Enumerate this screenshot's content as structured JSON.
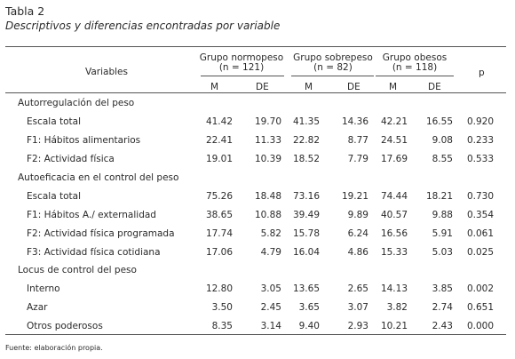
{
  "title": "Tabla 2",
  "subtitle": "Descriptivos y diferencias encontradas por variable",
  "header": {
    "variables": "Variables",
    "groups": [
      {
        "name": "Grupo normopeso",
        "n": "(n = 121)"
      },
      {
        "name": "Grupo sobrepeso",
        "n": "(n = 82)"
      },
      {
        "name": "Grupo obesos",
        "n": "(n = 118)"
      }
    ],
    "m": "M",
    "de": "DE",
    "p": "p"
  },
  "sections": [
    {
      "label": "Autorregulación del peso",
      "rows": [
        {
          "label": "Escala total",
          "v": [
            "41.42",
            "19.70",
            "41.35",
            "14.36",
            "42.21",
            "16.55"
          ],
          "p": "0.920"
        },
        {
          "label": "F1: Hábitos alimentarios",
          "v": [
            "22.41",
            "11.33",
            "22.82",
            "8.77",
            "24.51",
            "9.08"
          ],
          "p": "0.233"
        },
        {
          "label": "F2: Actividad física",
          "v": [
            "19.01",
            "10.39",
            "18.52",
            "7.79",
            "17.69",
            "8.55"
          ],
          "p": "0.533"
        }
      ]
    },
    {
      "label": "Autoeficacia en el control del peso",
      "rows": [
        {
          "label": "Escala total",
          "v": [
            "75.26",
            "18.48",
            "73.16",
            "19.21",
            "74.44",
            "18.21"
          ],
          "p": "0.730"
        },
        {
          "label": "F1: Hábitos A./ externalidad",
          "v": [
            "38.65",
            "10.88",
            "39.49",
            "9.89",
            "40.57",
            "9.88"
          ],
          "p": "0.354"
        },
        {
          "label": "F2: Actividad física programada",
          "v": [
            "17.74",
            "5.82",
            "15.78",
            "6.24",
            "16.56",
            "5.91"
          ],
          "p": "0.061"
        },
        {
          "label": "F3: Actividad física cotidiana",
          "v": [
            "17.06",
            "4.79",
            "16.04",
            "4.86",
            "15.33",
            "5.03"
          ],
          "p": "0.025"
        }
      ]
    },
    {
      "label": "Locus de control del peso",
      "rows": [
        {
          "label": "Interno",
          "v": [
            "12.80",
            "3.05",
            "13.65",
            "2.65",
            "14.13",
            "3.85"
          ],
          "p": "0.002"
        },
        {
          "label": "Azar",
          "v": [
            "3.50",
            "2.45",
            "3.65",
            "3.07",
            "3.82",
            "2.74"
          ],
          "p": "0.651"
        },
        {
          "label": "Otros poderosos",
          "v": [
            "8.35",
            "3.14",
            "9.40",
            "2.93",
            "10.21",
            "2.43"
          ],
          "p": "0.000"
        }
      ]
    }
  ],
  "footer": "Fuente: elaboración propia."
}
